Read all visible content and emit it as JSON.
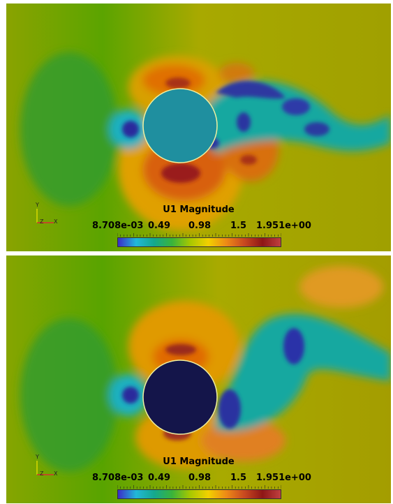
{
  "colors": {
    "background": "#9fa000",
    "scale": [
      "#3b2cc8",
      "#22b8d8",
      "#14a88e",
      "#3ab43a",
      "#a8c800",
      "#f2d000",
      "#ee8a16",
      "#c84820",
      "#8e1616",
      "#c04040"
    ],
    "cylinder_top": "#1f8f9f",
    "cylinder_bottom": "#14154a"
  },
  "panels": [
    {
      "colorbar": {
        "title": "U1 Magnitude",
        "ticks": [
          "8.708e-03",
          "0.49",
          "0.98",
          "1.5",
          "1.951e+00"
        ]
      },
      "axes_icon": {
        "y": "Y",
        "z": "Z",
        "x": "X"
      }
    },
    {
      "colorbar": {
        "title": "U1 Magnitude",
        "ticks": [
          "8.708e-03",
          "0.49",
          "0.98",
          "1.5",
          "1.951e+00"
        ]
      },
      "axes_icon": {
        "y": "Y",
        "z": "Z",
        "x": "X"
      }
    }
  ]
}
